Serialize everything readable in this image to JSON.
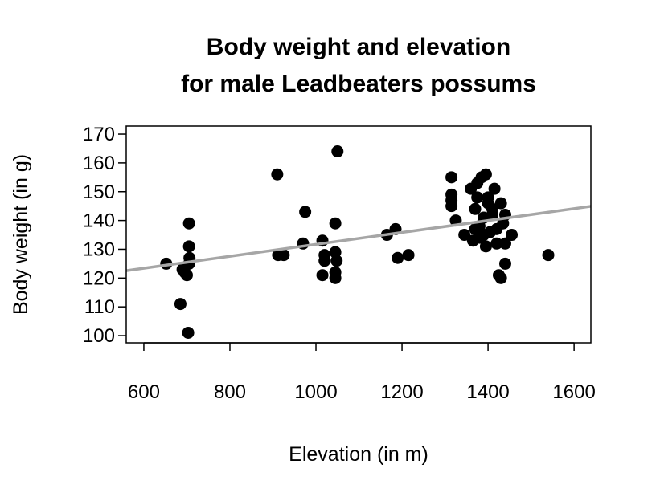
{
  "chart_data": {
    "type": "scatter",
    "title": [
      "Body weight and elevation",
      "for male Leadbeaters possums"
    ],
    "xlabel": "Elevation (in m)",
    "ylabel": "Body weight (in g)",
    "xlim": [
      559,
      1639
    ],
    "ylim": [
      97.5,
      172.8
    ],
    "xticks": [
      600,
      800,
      1000,
      1200,
      1400,
      1600
    ],
    "yticks": [
      100,
      110,
      120,
      130,
      140,
      150,
      160,
      170
    ],
    "grid": false,
    "point_color": "#000000",
    "trend_line": {
      "intercept": 111.0,
      "slope": 0.0207,
      "color": "#a6a6a6"
    },
    "points": [
      [
        652,
        125
      ],
      [
        690,
        123
      ],
      [
        695,
        122
      ],
      [
        700,
        121
      ],
      [
        685,
        111
      ],
      [
        703,
        101
      ],
      [
        705,
        139
      ],
      [
        705,
        131
      ],
      [
        706,
        127
      ],
      [
        705,
        125
      ],
      [
        910,
        156
      ],
      [
        912,
        128
      ],
      [
        925,
        128
      ],
      [
        975,
        143
      ],
      [
        970,
        132
      ],
      [
        1015,
        133
      ],
      [
        1020,
        128
      ],
      [
        1020,
        126
      ],
      [
        1015,
        121
      ],
      [
        1045,
        139
      ],
      [
        1050,
        164
      ],
      [
        1045,
        129
      ],
      [
        1048,
        126
      ],
      [
        1045,
        122
      ],
      [
        1045,
        120
      ],
      [
        1165,
        135
      ],
      [
        1185,
        137
      ],
      [
        1190,
        127
      ],
      [
        1215,
        128
      ],
      [
        1315,
        155
      ],
      [
        1315,
        149
      ],
      [
        1315,
        147
      ],
      [
        1315,
        145
      ],
      [
        1325,
        140
      ],
      [
        1345,
        135
      ],
      [
        1360,
        151
      ],
      [
        1365,
        133
      ],
      [
        1370,
        144
      ],
      [
        1375,
        153
      ],
      [
        1375,
        148
      ],
      [
        1380,
        138
      ],
      [
        1385,
        155
      ],
      [
        1390,
        141
      ],
      [
        1395,
        156
      ],
      [
        1395,
        131
      ],
      [
        1400,
        148
      ],
      [
        1400,
        146
      ],
      [
        1405,
        136
      ],
      [
        1410,
        144
      ],
      [
        1410,
        142
      ],
      [
        1415,
        151
      ],
      [
        1420,
        137
      ],
      [
        1420,
        132
      ],
      [
        1425,
        121
      ],
      [
        1430,
        120
      ],
      [
        1430,
        146
      ],
      [
        1435,
        139
      ],
      [
        1440,
        142
      ],
      [
        1440,
        132
      ],
      [
        1440,
        125
      ],
      [
        1455,
        135
      ],
      [
        1540,
        128
      ],
      [
        1380,
        134
      ],
      [
        1390,
        135
      ],
      [
        1370,
        137
      ]
    ]
  }
}
